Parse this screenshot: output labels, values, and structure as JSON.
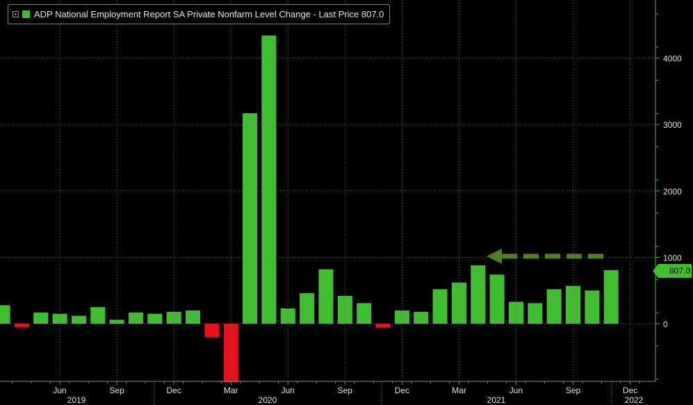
{
  "legend": {
    "label": "ADP National Employment Report SA Private Nonfarm Level Change - Last Price 807.0",
    "expand_icon": "plus-box-icon",
    "color": "#3fbf2f"
  },
  "last_price_badge": "807.0",
  "colors": {
    "positive": "#3fbf2f",
    "negative": "#e8101a",
    "arrow": "#4f7f1f",
    "axis": "#3fbf2f",
    "grid": "#6a6a6a",
    "text": "#e0e0e0"
  },
  "chart_data": {
    "type": "bar",
    "title": "ADP National Employment Report SA Private Nonfarm Level Change - Last Price 807.0",
    "ylim": [
      -900,
      4800
    ],
    "y_ticks": [
      0,
      1000,
      2000,
      3000,
      4000
    ],
    "y_tick_labels": [
      "0",
      "1000",
      "2000",
      "3000",
      "4000"
    ],
    "y_axis_position": "right",
    "grid": true,
    "categories": [
      "2019-03",
      "2019-04",
      "2019-05",
      "2019-06",
      "2019-07",
      "2019-08",
      "2019-09",
      "2019-10",
      "2019-11",
      "2019-12",
      "2020-01",
      "2020-02",
      "2020-03",
      "2020-04",
      "2020-05",
      "2020-06",
      "2020-07",
      "2020-08",
      "2020-09",
      "2020-10",
      "2020-11",
      "2020-12",
      "2021-01",
      "2021-02",
      "2021-03",
      "2021-04",
      "2021-05",
      "2021-06",
      "2021-07",
      "2021-08",
      "2021-09",
      "2021-10",
      "2021-11",
      "2021-12"
    ],
    "values": [
      280,
      -50,
      170,
      150,
      120,
      250,
      60,
      170,
      150,
      180,
      200,
      -200,
      -880,
      3170,
      4340,
      230,
      460,
      820,
      420,
      310,
      -60,
      200,
      180,
      520,
      620,
      880,
      740,
      330,
      310,
      520,
      570,
      500,
      807,
      null
    ],
    "month_ticks": [
      "Jun",
      "Sep",
      "Dec",
      "Mar",
      "Jun",
      "Sep",
      "Dec",
      "Mar",
      "Jun",
      "Sep",
      "Dec"
    ],
    "year_labels": [
      "2019",
      "2020",
      "2021",
      "2022"
    ],
    "last_value": 807.0,
    "annotation": {
      "type": "dashed-arrow",
      "from_value": 807,
      "to_category": "2021-06"
    }
  }
}
